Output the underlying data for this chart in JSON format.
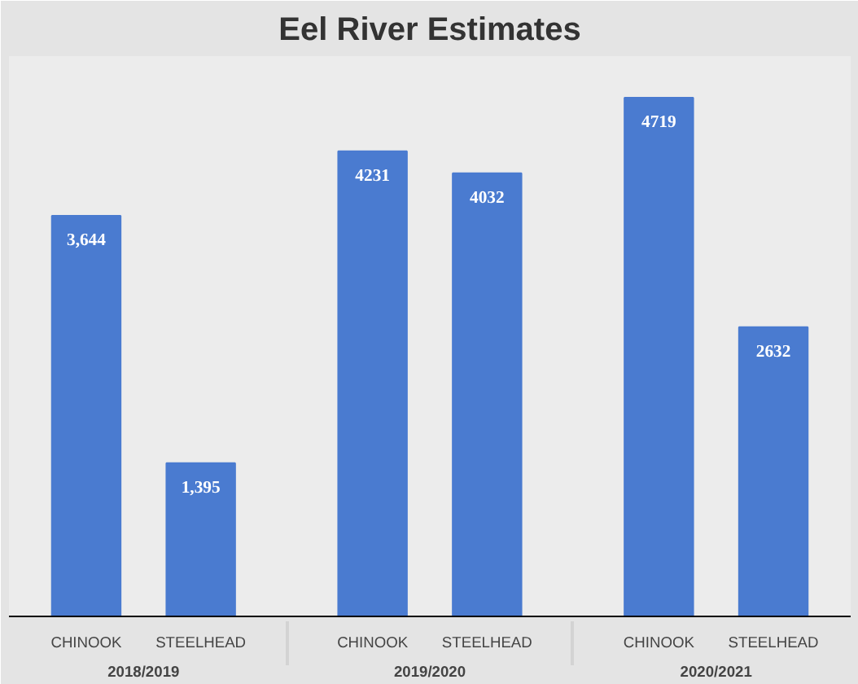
{
  "chart_data": {
    "type": "bar",
    "title": "Eel River Estimates",
    "categories": [
      "CHINOOK",
      "STEELHEAD",
      "CHINOOK",
      "STEELHEAD",
      "CHINOOK",
      "STEELHEAD"
    ],
    "values": [
      3644,
      1395,
      4231,
      4032,
      4719,
      2632
    ],
    "value_labels": [
      "3,644",
      "1,395",
      "4231",
      "4032",
      "4719",
      "2632"
    ],
    "color": "#4a7bd0",
    "annotations": [
      "2018/2019",
      "2019/2020",
      "2020/2021"
    ]
  }
}
